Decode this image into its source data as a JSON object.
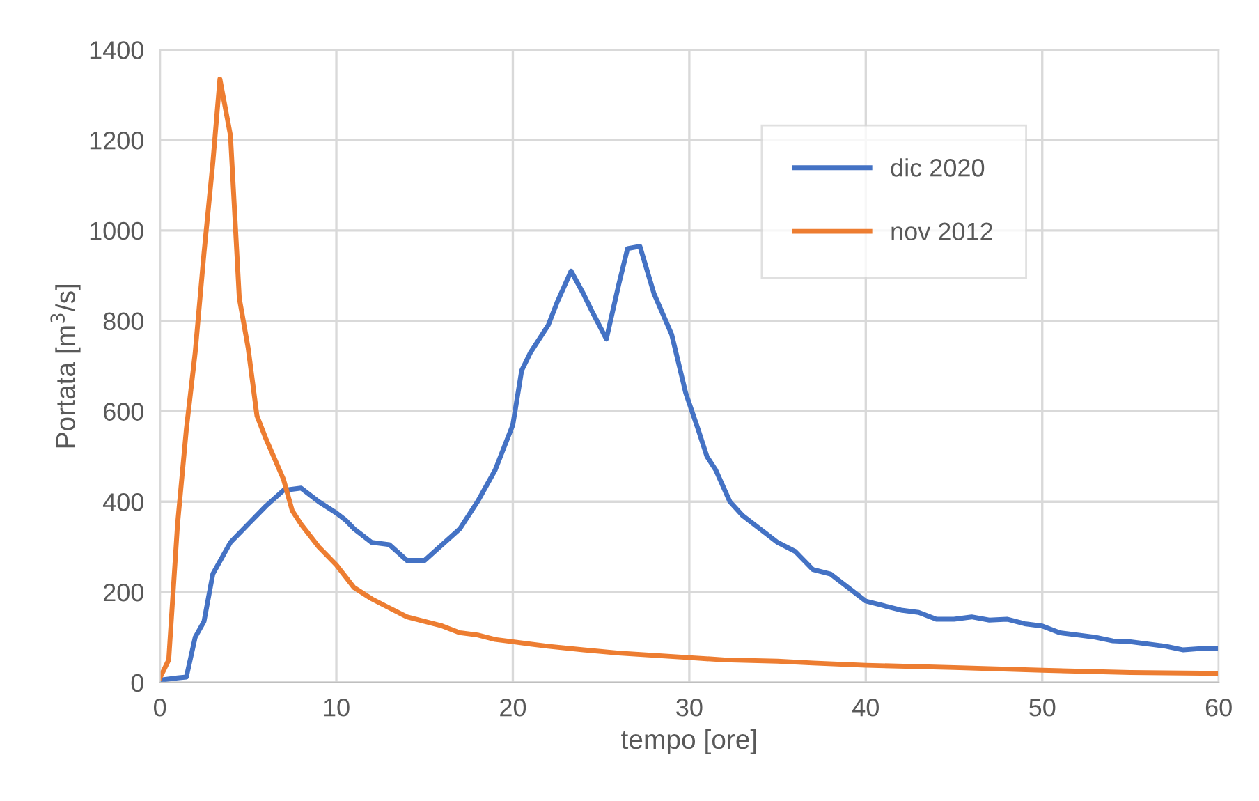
{
  "chart_data": {
    "type": "line",
    "xlabel": "tempo [ore]",
    "ylabel": "Portata [m$^{3}$/s]",
    "xlim": [
      0,
      60
    ],
    "xticks": [
      0,
      10,
      20,
      30,
      40,
      50,
      60
    ],
    "ylim": [
      0,
      1400
    ],
    "yticks": [
      0,
      200,
      400,
      600,
      800,
      1000,
      1200,
      1400
    ],
    "grid": true,
    "legend": "top right",
    "marker": "none",
    "line_style": "solid",
    "series": [
      {
        "name": "dic 2020",
        "color": "#4472c4",
        "x": [
          0,
          1,
          1.5,
          2,
          2.5,
          3,
          4,
          5,
          6,
          7,
          8,
          9,
          10,
          10.5,
          11,
          12,
          13,
          14,
          15,
          16,
          17,
          18,
          19,
          20,
          20.5,
          21,
          22,
          22.5,
          23.3,
          24,
          24.5,
          25.3,
          26,
          26.5,
          27.2,
          28,
          29,
          29.8,
          30.5,
          31,
          31.5,
          32.3,
          33,
          34,
          35,
          36,
          37,
          38,
          39,
          40,
          41,
          42,
          43,
          44,
          45,
          46,
          47,
          48,
          49,
          50,
          51,
          52,
          53,
          54,
          55,
          56,
          57,
          58,
          59,
          60
        ],
        "values": [
          5,
          10,
          12,
          100,
          135,
          240,
          310,
          350,
          390,
          425,
          430,
          400,
          375,
          360,
          340,
          310,
          305,
          270,
          270,
          305,
          340,
          400,
          470,
          570,
          690,
          730,
          790,
          840,
          910,
          860,
          820,
          760,
          880,
          960,
          965,
          860,
          770,
          640,
          560,
          500,
          470,
          400,
          370,
          340,
          310,
          290,
          250,
          240,
          210,
          180,
          170,
          160,
          155,
          140,
          140,
          145,
          138,
          140,
          130,
          125,
          110,
          105,
          100,
          92,
          90,
          85,
          80,
          72,
          75,
          75
        ]
      },
      {
        "name": "nov 2012",
        "color": "#ed7d31",
        "x": [
          0,
          0.5,
          1,
          1.5,
          2,
          2.5,
          3,
          3.4,
          4,
          4.5,
          5,
          5.5,
          6,
          7,
          7.5,
          8,
          9,
          10,
          11,
          12,
          13,
          14,
          15,
          16,
          17,
          18,
          19,
          20,
          22,
          24,
          26,
          28,
          30,
          32,
          35,
          37,
          40,
          45,
          50,
          55,
          60
        ],
        "values": [
          10,
          50,
          350,
          560,
          730,
          950,
          1150,
          1335,
          1210,
          850,
          740,
          590,
          540,
          450,
          380,
          350,
          300,
          260,
          210,
          185,
          165,
          145,
          135,
          125,
          110,
          105,
          95,
          90,
          80,
          72,
          65,
          60,
          55,
          50,
          47,
          43,
          38,
          33,
          27,
          22,
          20
        ]
      }
    ]
  }
}
